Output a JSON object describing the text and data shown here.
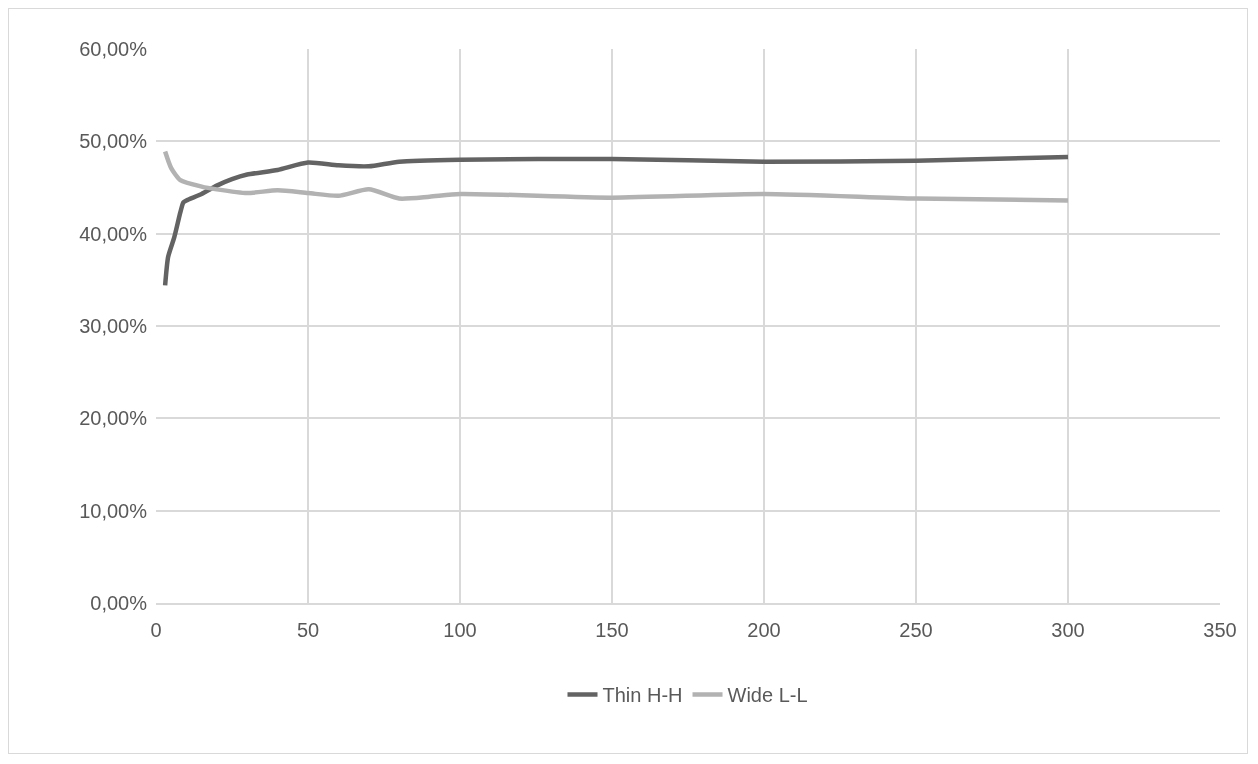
{
  "chart_data": {
    "type": "line",
    "series": [
      {
        "name": "Thin H-H",
        "color": "#636363",
        "x": [
          3,
          4,
          6,
          8,
          9,
          10,
          15,
          20,
          25,
          30,
          40,
          50,
          60,
          70,
          80,
          100,
          150,
          200,
          250,
          300
        ],
        "values": [
          34.4,
          37.5,
          39.6,
          42.3,
          43.4,
          43.6,
          44.3,
          45.2,
          45.9,
          46.4,
          46.9,
          47.7,
          47.4,
          47.3,
          47.8,
          48.0,
          48.1,
          47.8,
          47.9,
          48.3
        ]
      },
      {
        "name": "Wide L-L",
        "color": "#b2b2b2",
        "x": [
          3,
          5,
          8,
          15,
          20,
          30,
          40,
          50,
          60,
          70,
          80,
          90,
          100,
          150,
          200,
          250,
          300
        ],
        "values": [
          48.9,
          47.1,
          45.8,
          45.1,
          44.8,
          44.4,
          44.7,
          44.4,
          44.1,
          44.8,
          43.8,
          44.0,
          44.3,
          43.9,
          44.3,
          43.8,
          43.6
        ]
      }
    ],
    "xlim": [
      0,
      350
    ],
    "xticks": [
      0,
      50,
      100,
      150,
      200,
      250,
      300,
      350
    ],
    "ylim": [
      0,
      60
    ],
    "yticks": [
      {
        "value": 0,
        "label": "0,00%"
      },
      {
        "value": 10,
        "label": "10,00%"
      },
      {
        "value": 20,
        "label": "20,00%"
      },
      {
        "value": 30,
        "label": "30,00%"
      },
      {
        "value": 40,
        "label": "40,00%"
      },
      {
        "value": 50,
        "label": "50,00%"
      },
      {
        "value": 60,
        "label": "60,00%"
      }
    ],
    "grid": true,
    "legend": "bottom",
    "marker": "none",
    "line_style": "solid"
  }
}
